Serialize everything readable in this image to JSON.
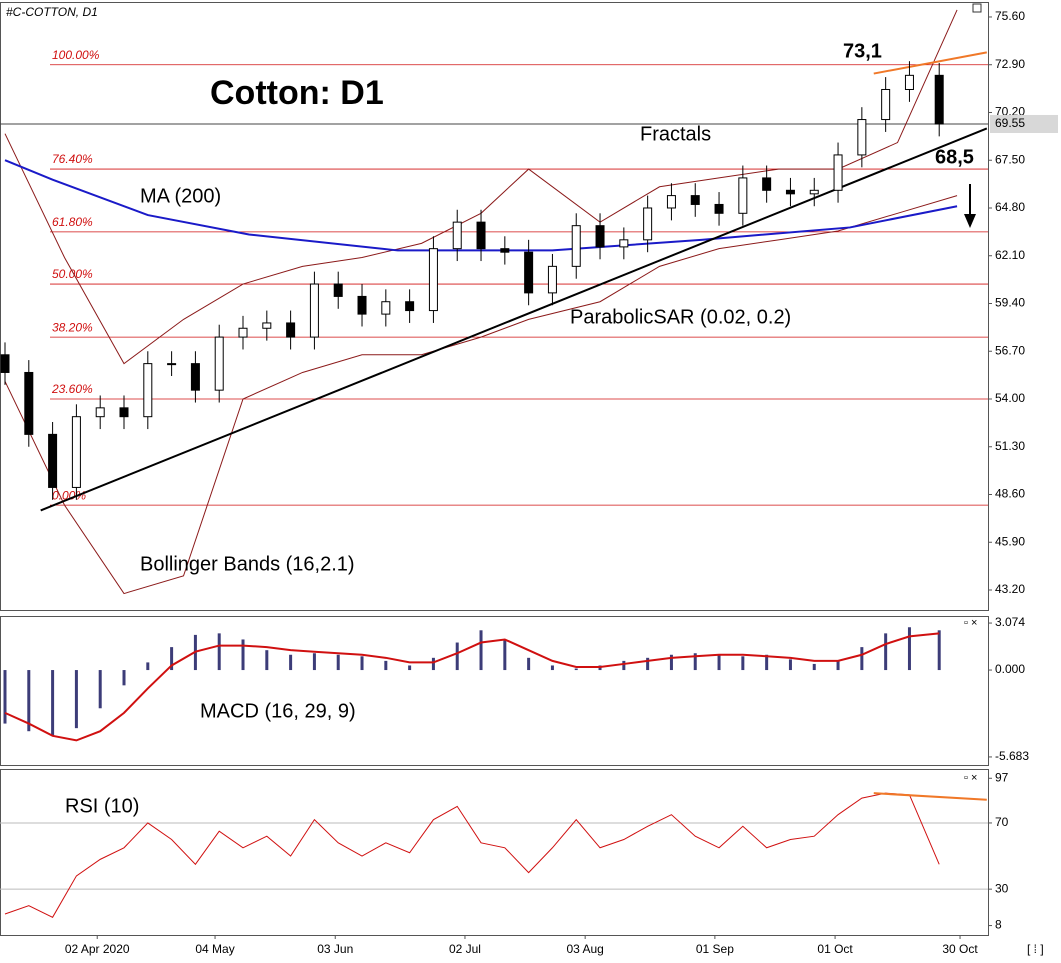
{
  "chart_data": [
    {
      "type": "candlestick",
      "title": "Cotton: D1",
      "subtitle": "#C-COTTON, D1",
      "xlim": [
        -0.84,
        165.2
      ],
      "ylim": [
        42.07,
        76.39
      ],
      "yticks": [
        {
          "value": 75.6,
          "label": "75.60"
        },
        {
          "value": 72.9,
          "label": "72.90"
        },
        {
          "value": 70.2,
          "label": "70.20"
        },
        {
          "value": 67.5,
          "label": "67.50"
        },
        {
          "value": 64.8,
          "label": "64.80"
        },
        {
          "value": 62.1,
          "label": "62.10"
        },
        {
          "value": 59.4,
          "label": "59.40"
        },
        {
          "value": 56.7,
          "label": "56.70"
        },
        {
          "value": 54,
          "label": "54.00"
        },
        {
          "value": 51.3,
          "label": "51.30"
        },
        {
          "value": 48.6,
          "label": "48.60"
        },
        {
          "value": 45.9,
          "label": "45.90"
        },
        {
          "value": 43.2,
          "label": "43.20"
        }
      ],
      "last_price": 69.55,
      "x": [
        0,
        4,
        8,
        12,
        16,
        20,
        24,
        28,
        32,
        36,
        40,
        44,
        48,
        52,
        56,
        60,
        64,
        68,
        72,
        76,
        80,
        84,
        88,
        92,
        96,
        100,
        104,
        108,
        112,
        116,
        120,
        124,
        128,
        132,
        136,
        140,
        144,
        148,
        152,
        157
      ],
      "open": [
        56.5,
        55.5,
        52,
        49,
        53,
        53.5,
        53,
        56,
        56,
        54.5,
        57.5,
        58,
        58.3,
        57.5,
        60.5,
        59.8,
        58.8,
        59.5,
        59,
        62.5,
        64,
        62.5,
        62.3,
        60,
        61.5,
        63.8,
        62.6,
        63,
        64.8,
        65.5,
        65,
        64.5,
        66.5,
        65.8,
        65.6,
        65.8,
        67.8,
        69.8,
        71.5,
        72.3
      ],
      "high": [
        57.2,
        56.2,
        52.7,
        53.7,
        54.2,
        54.2,
        56.7,
        56.7,
        56.7,
        58.2,
        58.7,
        59,
        59,
        61.2,
        61.2,
        60.5,
        60.2,
        60.2,
        63.2,
        64.7,
        64.7,
        63.2,
        63,
        62.2,
        64.5,
        64.5,
        63.7,
        65.5,
        66.2,
        66.2,
        65.7,
        67.2,
        67.2,
        66.5,
        66.5,
        68.5,
        70.5,
        72.2,
        73.1,
        73
      ],
      "low": [
        54.8,
        51.3,
        48.3,
        48.3,
        52.3,
        52.3,
        52.3,
        55.3,
        53.8,
        53.8,
        56.8,
        57.3,
        56.8,
        56.8,
        59.1,
        58.1,
        58.1,
        58.3,
        58.3,
        61.8,
        61.8,
        61.6,
        59.3,
        59.3,
        60.8,
        61.9,
        61.9,
        62.3,
        64.1,
        64.3,
        63.8,
        63.8,
        65.1,
        64.9,
        64.9,
        65.1,
        67.1,
        69.1,
        70.8,
        68.85
      ],
      "close": [
        55.5,
        52,
        49,
        53,
        53.5,
        53,
        56,
        56,
        54.5,
        57.5,
        58,
        58.3,
        57.5,
        60.5,
        59.8,
        58.8,
        59.5,
        59,
        62.5,
        64,
        62.5,
        62.3,
        60,
        61.5,
        63.8,
        62.6,
        63,
        64.8,
        65.5,
        65,
        64.5,
        66.5,
        65.8,
        65.6,
        65.8,
        67.8,
        69.8,
        71.5,
        72.3,
        69.55
      ],
      "ma": {
        "color": "#1a1ac8",
        "x": [
          0,
          8,
          24,
          41,
          66,
          92,
          117,
          142,
          160
        ],
        "values": [
          67.5,
          66.4,
          64.4,
          63.3,
          62.4,
          62.4,
          63.0,
          63.7,
          64.9
        ]
      },
      "bands": {
        "color": "#8b1a1a",
        "x": [
          0,
          10,
          20,
          30,
          40,
          50,
          60,
          70,
          80,
          88,
          100,
          110,
          120,
          130,
          140,
          150,
          160
        ],
        "upper": [
          69,
          62,
          56,
          58.5,
          60.5,
          61.5,
          62,
          62.8,
          64.5,
          67,
          64,
          66,
          66.5,
          67,
          67,
          68.5,
          76
        ],
        "lower": [
          55,
          48,
          43,
          44,
          54,
          55.5,
          56.5,
          56.5,
          57.5,
          58.5,
          59.5,
          61.5,
          62.5,
          63,
          63.5,
          64.5,
          65.5
        ]
      },
      "trendline": {
        "color": "#000000",
        "x": [
          6,
          165
        ],
        "values": [
          47.7,
          69.3
        ]
      },
      "resistance": {
        "color": "#f07828",
        "x": [
          146,
          165
        ],
        "values": [
          72.4,
          73.6
        ]
      },
      "fib": {
        "color": "#d01010",
        "labels": [
          "100.00%",
          "76.40%",
          "61.80%",
          "50.00%",
          "38.20%",
          "23.60%",
          "0.00%"
        ],
        "prices": [
          72.9,
          67.0,
          63.45,
          60.5,
          57.5,
          54.0,
          48.0
        ]
      },
      "annotations": [
        "73,1",
        "68,5",
        "Fractals",
        "MA (200)",
        "ParabolicSAR (0.02, 0.2)",
        "Bollinger Bands (16,2.1)"
      ]
    },
    {
      "type": "macd",
      "xlim": [
        -0.84,
        165.2
      ],
      "ylim": [
        -6.21,
        3.47
      ],
      "yticks": [
        3.074,
        {
          "value": 0,
          "label": "0.000"
        },
        -5.683
      ],
      "x": [
        0,
        4,
        8,
        12,
        16,
        20,
        24,
        28,
        32,
        36,
        40,
        44,
        48,
        52,
        56,
        60,
        64,
        68,
        72,
        76,
        80,
        84,
        88,
        92,
        96,
        100,
        104,
        108,
        112,
        116,
        120,
        124,
        128,
        132,
        136,
        140,
        144,
        148,
        152,
        157
      ],
      "histogram": {
        "color": "#3c3c78",
        "values": [
          -3.5,
          -4,
          -4.3,
          -3.8,
          -2.5,
          -1,
          0.5,
          1.5,
          2.3,
          2.4,
          2.0,
          1.3,
          1.0,
          1.1,
          1.0,
          0.9,
          0.6,
          0.3,
          0.8,
          1.8,
          2.6,
          2.0,
          0.8,
          0.3,
          0.1,
          0.3,
          0.6,
          0.8,
          1.0,
          1.1,
          1.0,
          0.9,
          1.0,
          0.7,
          0.4,
          0.6,
          1.5,
          2.4,
          2.8,
          2.6
        ]
      },
      "signal": {
        "color": "#d01010",
        "values": [
          -2.8,
          -3.5,
          -4.3,
          -4.6,
          -4.0,
          -2.8,
          -1.2,
          0.3,
          1.2,
          1.6,
          1.6,
          1.5,
          1.3,
          1.2,
          1.1,
          1.0,
          0.8,
          0.5,
          0.5,
          1.1,
          1.8,
          2.0,
          1.3,
          0.6,
          0.2,
          0.2,
          0.4,
          0.6,
          0.8,
          0.9,
          1.0,
          1.0,
          0.9,
          0.8,
          0.6,
          0.6,
          1.0,
          1.7,
          2.2,
          2.4
        ]
      },
      "annotations": [
        "MACD (16, 29, 9)"
      ]
    },
    {
      "type": "line",
      "xlim": [
        -0.84,
        165.2
      ],
      "ylim": [
        2.3,
        102
      ],
      "yticks": [
        97,
        70,
        30,
        8
      ],
      "levels": [
        70,
        30
      ],
      "xticks": [
        {
          "value": 15.5,
          "label": "02 Apr 2020"
        },
        {
          "value": 35.3,
          "label": "04 May"
        },
        {
          "value": 55.5,
          "label": "03 Jun"
        },
        {
          "value": 77.3,
          "label": "02 Jul"
        },
        {
          "value": 97.5,
          "label": "03 Aug"
        },
        {
          "value": 119.3,
          "label": "01 Sep"
        },
        {
          "value": 139.5,
          "label": "01 Oct"
        },
        {
          "value": 160.5,
          "label": "30 Oct"
        }
      ],
      "x": [
        0,
        4,
        8,
        12,
        16,
        20,
        24,
        28,
        32,
        36,
        40,
        44,
        48,
        52,
        56,
        60,
        64,
        68,
        72,
        76,
        80,
        84,
        88,
        92,
        96,
        100,
        104,
        108,
        112,
        116,
        120,
        124,
        128,
        132,
        136,
        140,
        144,
        148,
        152,
        157
      ],
      "color": "#d01010",
      "values": [
        15,
        20,
        13,
        38,
        48,
        55,
        70,
        60,
        45,
        65,
        55,
        62,
        50,
        72,
        58,
        50,
        58,
        52,
        72,
        80,
        58,
        55,
        40,
        55,
        72,
        55,
        60,
        68,
        75,
        62,
        55,
        68,
        55,
        60,
        62,
        75,
        85,
        88,
        87,
        45
      ],
      "resistance": {
        "color": "#f07828",
        "x": [
          146,
          165
        ],
        "values": [
          88,
          84
        ]
      },
      "annotations": [
        "RSI (10)"
      ]
    }
  ]
}
